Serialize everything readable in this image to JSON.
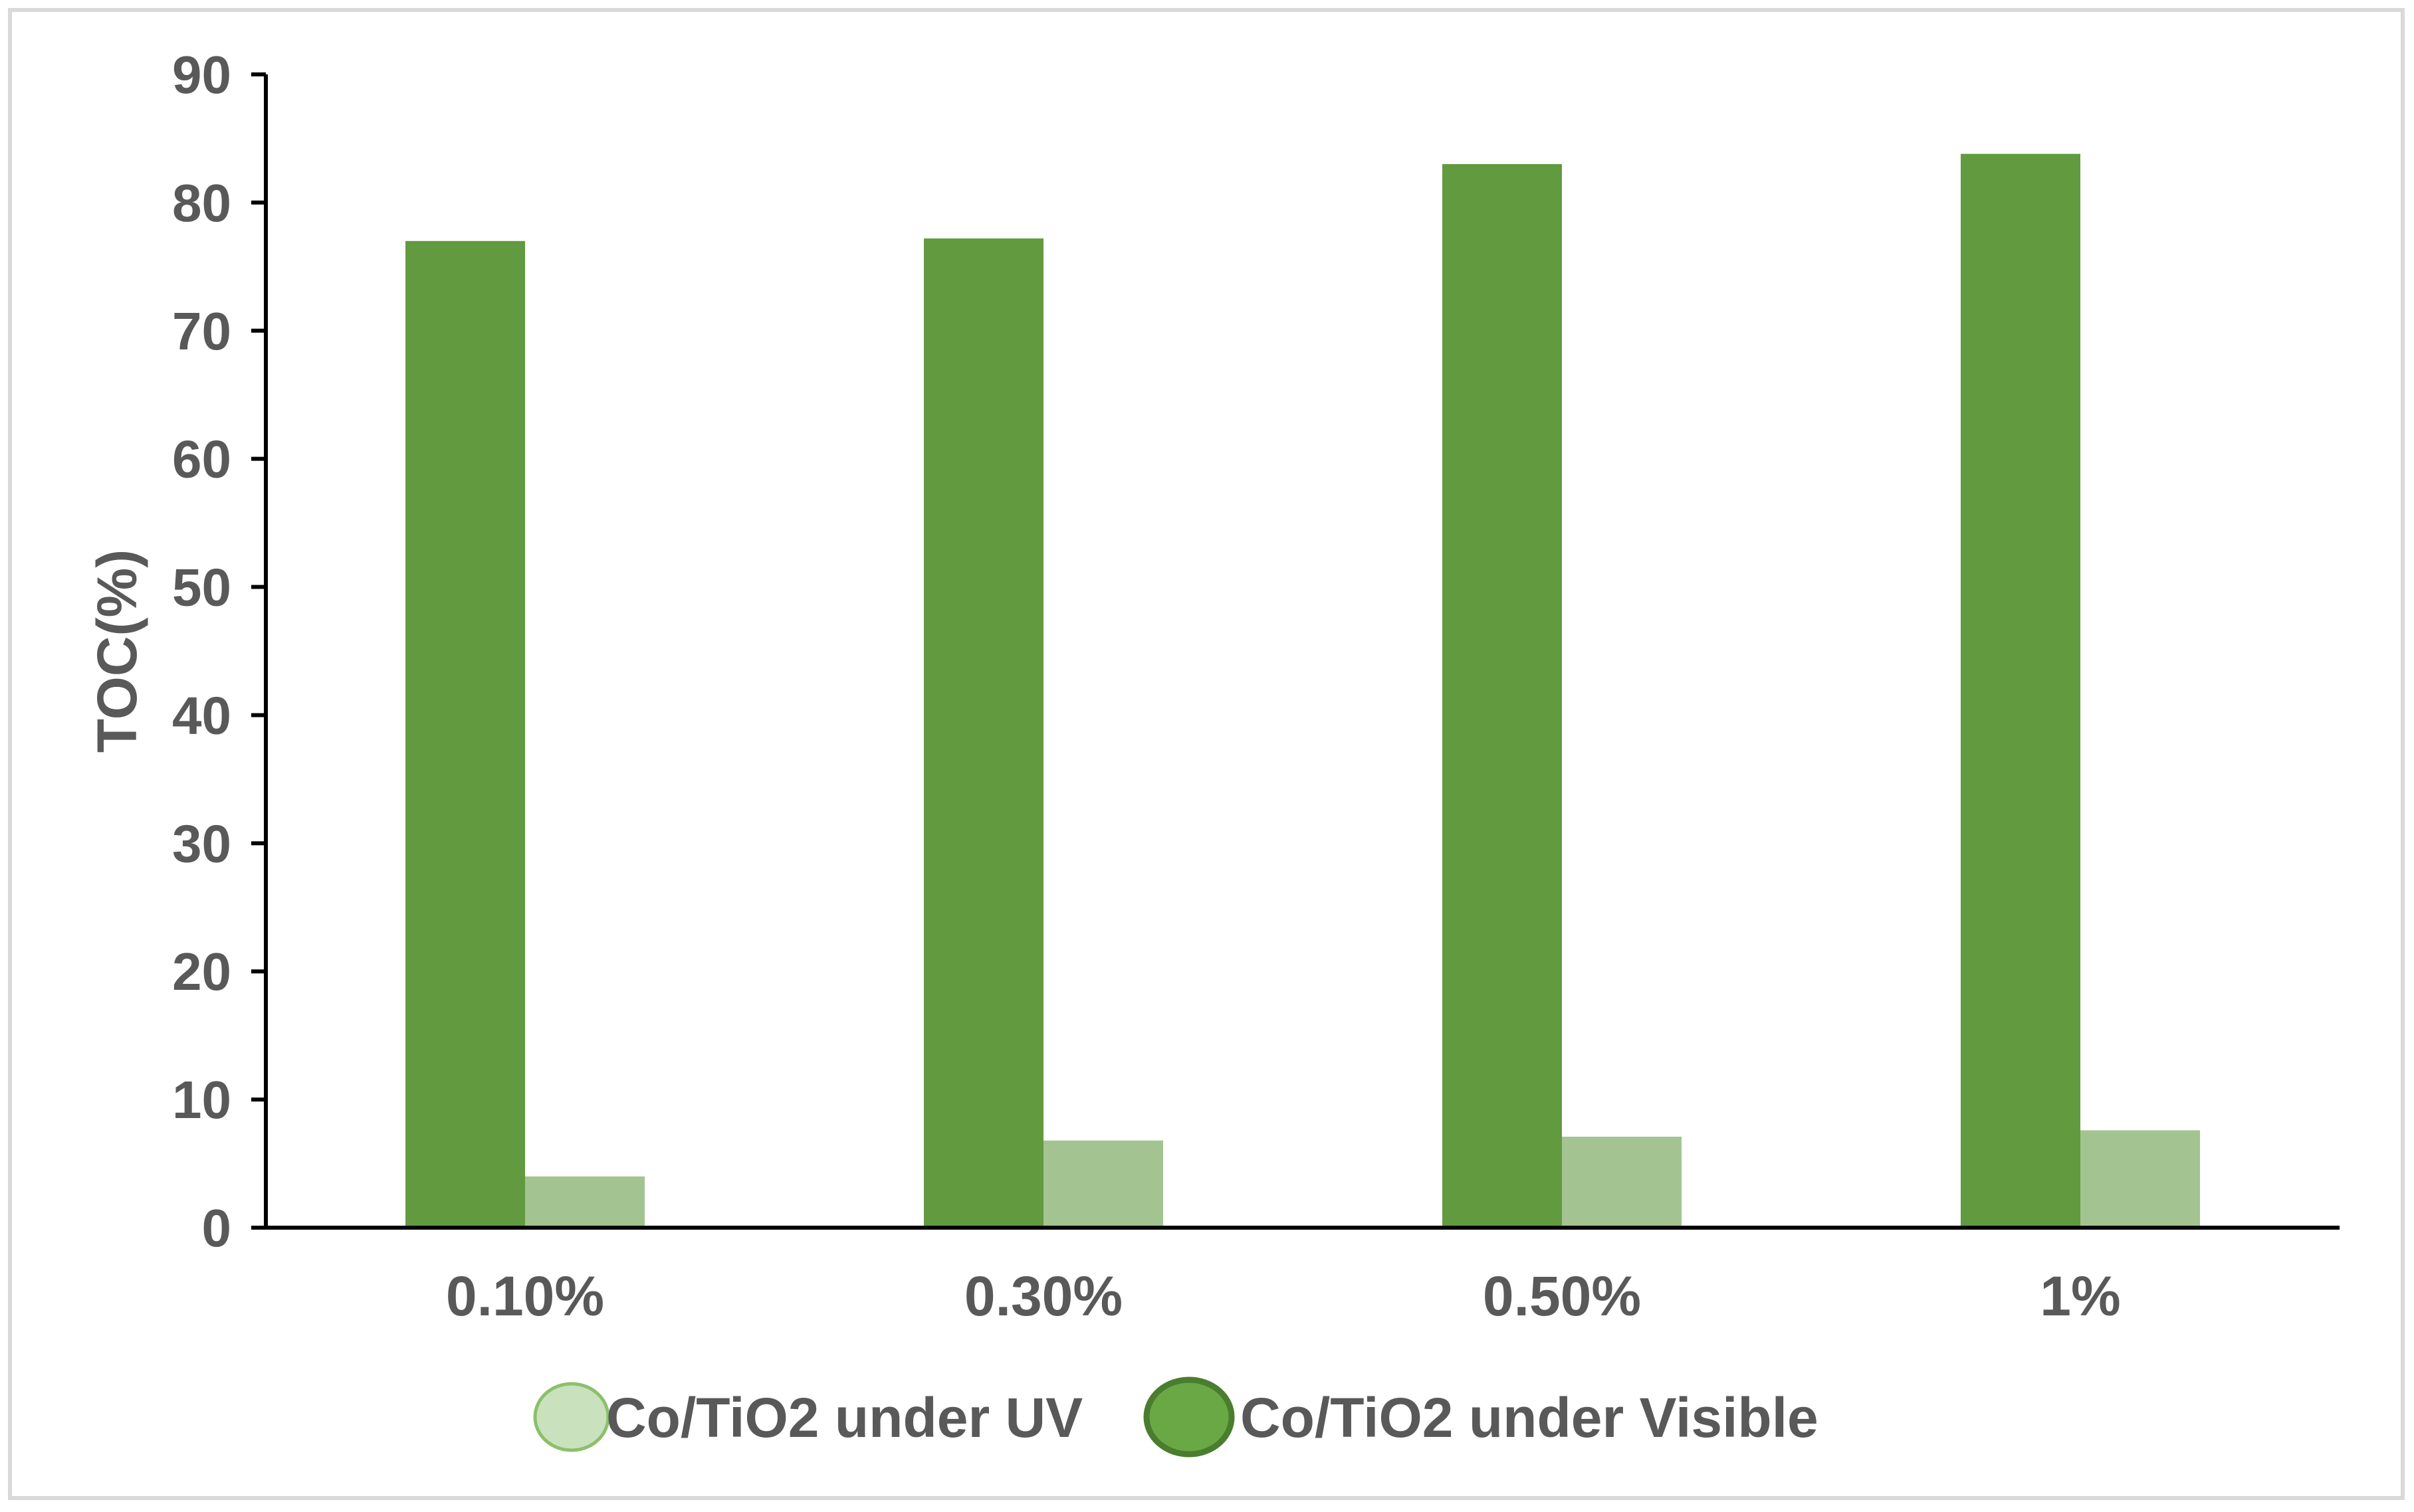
{
  "chart_data": {
    "type": "bar",
    "title": "",
    "xlabel": "",
    "ylabel": "TOC(%)",
    "ylim": [
      0,
      90
    ],
    "yticks": [
      0,
      10,
      20,
      30,
      40,
      50,
      60,
      70,
      80,
      90
    ],
    "categories": [
      "0.10%",
      "0.30%",
      "0.50%",
      "1%"
    ],
    "series": [
      {
        "name": "Co/TiO2 under Visible",
        "values": [
          77,
          77.2,
          83,
          83.8
        ],
        "color": "#629A3F"
      },
      {
        "name": "Co/TiO2 under UV",
        "values": [
          4,
          6.8,
          7.1,
          7.6
        ],
        "color": "#A3C491"
      }
    ],
    "legend": {
      "position": "bottom",
      "items": [
        {
          "label": "Co/TiO2 under UV",
          "fill": "#C9E2BD",
          "stroke": "#8CC06B"
        },
        {
          "label": "Co/TiO2 under Visible",
          "fill": "#6AA845",
          "stroke": "#4A7D2E"
        }
      ]
    },
    "grid": false
  }
}
